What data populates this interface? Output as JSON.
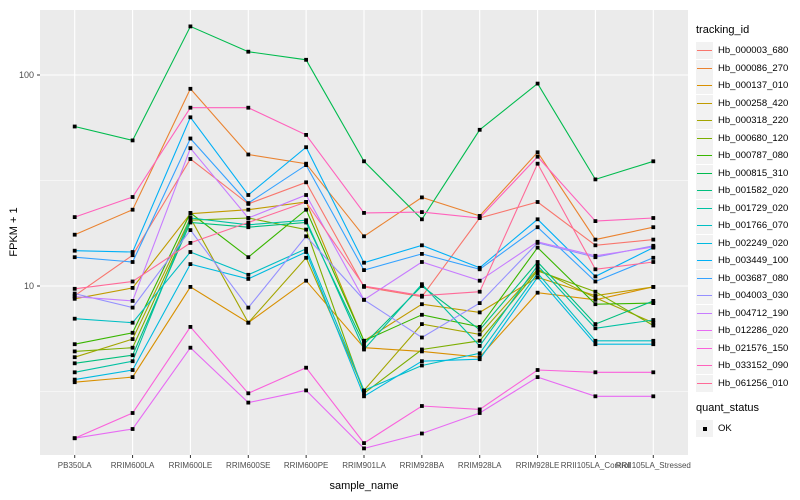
{
  "chart_data": {
    "type": "line",
    "title": "",
    "xlabel": "sample_name",
    "ylabel": "FPKM + 1",
    "y_scale": "log10",
    "y_ticks": [
      100,
      10
    ],
    "y_minor_ticks": [
      31.62,
      3.162
    ],
    "ylim_px_note": "log axis, 100 and 10 labeled",
    "grid": true,
    "panel_bg": "#EBEBEB",
    "grid_color": "#FFFFFF",
    "point_color": "#000000",
    "tick_label_color": "#4D4D4D",
    "categories": [
      "PB350LA",
      "RRIM600LA",
      "RRIM600LE",
      "RRIM600SE",
      "RRIM600PE",
      "RRIM901LA",
      "RRIM928BA",
      "RRIM928LA",
      "RRIM928LE",
      "RRII105LA_Control",
      "RRII105LA_Stressed"
    ],
    "series": [
      {
        "name": "Hb_000003_680",
        "color": "#F8766D",
        "values": [
          9.0,
          14.0,
          40,
          24.5,
          31,
          9.9,
          8.9,
          21,
          25,
          15.6,
          16.6
        ]
      },
      {
        "name": "Hb_000086_270",
        "color": "#EA8331",
        "values": [
          17.5,
          23,
          86,
          42,
          38,
          17.2,
          26.3,
          21.5,
          43,
          16.6,
          19
        ]
      },
      {
        "name": "Hb_000137_010",
        "color": "#D89000",
        "values": [
          3.5,
          3.7,
          9.9,
          6.7,
          10.6,
          5.1,
          4.9,
          4.6,
          9.3,
          8.6,
          9.9
        ]
      },
      {
        "name": "Hb_000258_420",
        "color": "#C09B00",
        "values": [
          8.7,
          9.8,
          22,
          23,
          25,
          5.5,
          8.2,
          7.5,
          11,
          9.0,
          9.9
        ]
      },
      {
        "name": "Hb_000318_220",
        "color": "#A3A500",
        "values": [
          4.6,
          5.6,
          21,
          6.7,
          13.6,
          3.2,
          6.6,
          5.9,
          12,
          8.8,
          6.7
        ]
      },
      {
        "name": "Hb_000680_120",
        "color": "#7CAE00",
        "values": [
          4.9,
          5.1,
          20.5,
          21,
          18.5,
          3.1,
          5.0,
          5.5,
          11.8,
          9.4,
          6.5
        ]
      },
      {
        "name": "Hb_000787_080",
        "color": "#39B600",
        "values": [
          5.3,
          6.0,
          22.2,
          13.7,
          23,
          5.5,
          7.3,
          6.4,
          15.2,
          8.2,
          8.3
        ]
      },
      {
        "name": "Hb_000815_310",
        "color": "#00BB4E",
        "values": [
          57,
          49,
          170,
          129,
          118,
          39,
          20.7,
          55,
          91,
          32,
          39
        ]
      },
      {
        "name": "Hb_001582_020",
        "color": "#00BF7D",
        "values": [
          4.3,
          4.7,
          20,
          19,
          20,
          5.3,
          10,
          6.2,
          13,
          6.6,
          8.5
        ]
      },
      {
        "name": "Hb_001729_020",
        "color": "#00C1A3",
        "values": [
          3.9,
          4.4,
          21,
          19.5,
          20.5,
          5.0,
          10.2,
          5.2,
          12.5,
          6.3,
          6.9
        ]
      },
      {
        "name": "Hb_001766_070",
        "color": "#00BFC4",
        "values": [
          7.0,
          6.7,
          14.5,
          11.3,
          15,
          3.2,
          4.2,
          4.8,
          11.5,
          5.5,
          5.5
        ]
      },
      {
        "name": "Hb_002249_020",
        "color": "#00BAE0",
        "values": [
          3.6,
          4.0,
          12.7,
          10.8,
          14.5,
          3.0,
          4.4,
          4.5,
          11,
          5.3,
          5.3
        ]
      },
      {
        "name": "Hb_003449_100",
        "color": "#00B0F6",
        "values": [
          14.7,
          14.5,
          63,
          27,
          45.5,
          12.9,
          15.6,
          12.2,
          20.7,
          11.1,
          15.2
        ]
      },
      {
        "name": "Hb_003687_080",
        "color": "#35A2FF",
        "values": [
          13.7,
          13.0,
          50,
          24.7,
          37.4,
          11.9,
          14.2,
          12.0,
          19,
          10.5,
          13.6
        ]
      },
      {
        "name": "Hb_004003_030",
        "color": "#9590FF",
        "values": [
          9.2,
          7.9,
          18.4,
          7.9,
          17.2,
          8.6,
          5.7,
          8.3,
          16,
          13.7,
          15.5
        ]
      },
      {
        "name": "Hb_004712_190",
        "color": "#C77CFF",
        "values": [
          8.9,
          8.5,
          45,
          21,
          27,
          8.6,
          13.0,
          10.6,
          16.2,
          13.9,
          15.3
        ]
      },
      {
        "name": "Hb_012286_020",
        "color": "#E76BF3",
        "values": [
          1.9,
          2.1,
          5.1,
          2.8,
          3.2,
          1.7,
          2.0,
          2.5,
          3.7,
          3.0,
          3.0
        ]
      },
      {
        "name": "Hb_021576_150",
        "color": "#FA62DB",
        "values": [
          1.9,
          2.5,
          6.4,
          3.1,
          4.1,
          1.8,
          2.7,
          2.6,
          4.0,
          3.9,
          3.9
        ]
      },
      {
        "name": "Hb_033152_090",
        "color": "#FF62BC",
        "values": [
          21.2,
          26.4,
          70,
          70,
          52,
          22.2,
          22.4,
          21,
          41,
          20.3,
          21
        ]
      },
      {
        "name": "Hb_061256_010",
        "color": "#FF6A98",
        "values": [
          9.7,
          10.5,
          16,
          20,
          25,
          10.0,
          9.0,
          9.4,
          38,
          12.0,
          13.0
        ]
      }
    ],
    "legend": {
      "title": "tracking_id",
      "position": "right"
    },
    "quant_legend": {
      "title": "quant_status",
      "items": [
        {
          "label": "OK",
          "marker": "black-square"
        }
      ]
    }
  }
}
